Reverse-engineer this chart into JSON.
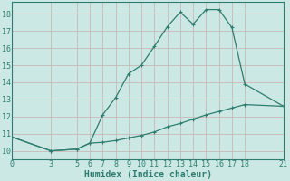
{
  "xlabel": "Humidex (Indice chaleur)",
  "ylabel": "",
  "background_color": "#cce8e4",
  "grid_color": "#b8d8d4",
  "line_color": "#2e7d6e",
  "xlim": [
    0,
    21
  ],
  "ylim": [
    9.5,
    18.7
  ],
  "xticks": [
    0,
    3,
    5,
    6,
    7,
    8,
    9,
    10,
    11,
    12,
    13,
    14,
    15,
    16,
    17,
    18,
    21
  ],
  "yticks": [
    10,
    11,
    12,
    13,
    14,
    15,
    16,
    17,
    18
  ],
  "line1_x": [
    0,
    3,
    5,
    6,
    7,
    8,
    9,
    10,
    11,
    12,
    13,
    14,
    15,
    16,
    17,
    18,
    21
  ],
  "line1_y": [
    10.8,
    10.0,
    10.1,
    10.45,
    12.1,
    13.1,
    14.5,
    15.0,
    16.1,
    17.25,
    18.1,
    17.4,
    18.25,
    18.25,
    17.2,
    13.9,
    12.6
  ],
  "line2_x": [
    0,
    3,
    5,
    6,
    7,
    8,
    9,
    10,
    11,
    12,
    13,
    14,
    15,
    16,
    17,
    18,
    21
  ],
  "line2_y": [
    10.8,
    10.0,
    10.1,
    10.45,
    10.5,
    10.6,
    10.75,
    10.9,
    11.1,
    11.4,
    11.6,
    11.85,
    12.1,
    12.3,
    12.5,
    12.7,
    12.6
  ],
  "tick_fontsize": 6,
  "xlabel_fontsize": 7
}
